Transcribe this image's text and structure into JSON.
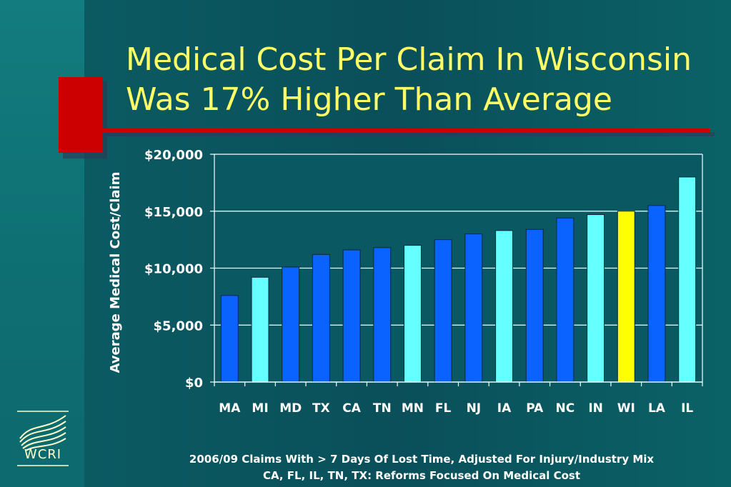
{
  "title": {
    "line1": "Medical Cost Per Claim In Wisconsin",
    "line2": "Was 17% Higher Than Average"
  },
  "colors": {
    "title": "#ffff66",
    "accent_red": "#cc0000",
    "bar_blue": "#0a63ff",
    "bar_cyan": "#66ffff",
    "bar_highlight": "#ffff00",
    "plot_bg": "#0a5862"
  },
  "logo": {
    "text": "WCRI",
    "icon": "wcri-logo-icon"
  },
  "chart_data": {
    "type": "bar",
    "ylabel": "Average Medical Cost/Claim",
    "xlabel": "",
    "ylim": [
      0,
      20000
    ],
    "yticks": [
      "$0",
      "$5,000",
      "$10,000",
      "$15,000",
      "$20,000"
    ],
    "ytick_values": [
      0,
      5000,
      10000,
      15000,
      20000
    ],
    "grid": true,
    "categories": [
      "MA",
      "MI",
      "MD",
      "TX",
      "CA",
      "TN",
      "MN",
      "FL",
      "NJ",
      "IA",
      "PA",
      "NC",
      "IN",
      "WI",
      "LA",
      "IL"
    ],
    "values": [
      7600,
      9200,
      10100,
      11200,
      11600,
      11800,
      12000,
      12500,
      13000,
      13300,
      13400,
      14400,
      14700,
      15000,
      15500,
      18000
    ],
    "bar_colors": [
      "blue",
      "cyan",
      "blue",
      "blue",
      "blue",
      "blue",
      "cyan",
      "blue",
      "blue",
      "cyan",
      "blue",
      "blue",
      "cyan",
      "yellow",
      "blue",
      "cyan"
    ]
  },
  "footnotes": {
    "line1": "2006/09 Claims With > 7 Days Of Lost Time, Adjusted For Injury/Industry Mix",
    "line2": "CA, FL, IL, TN, TX: Reforms Focused On Medical Cost"
  }
}
